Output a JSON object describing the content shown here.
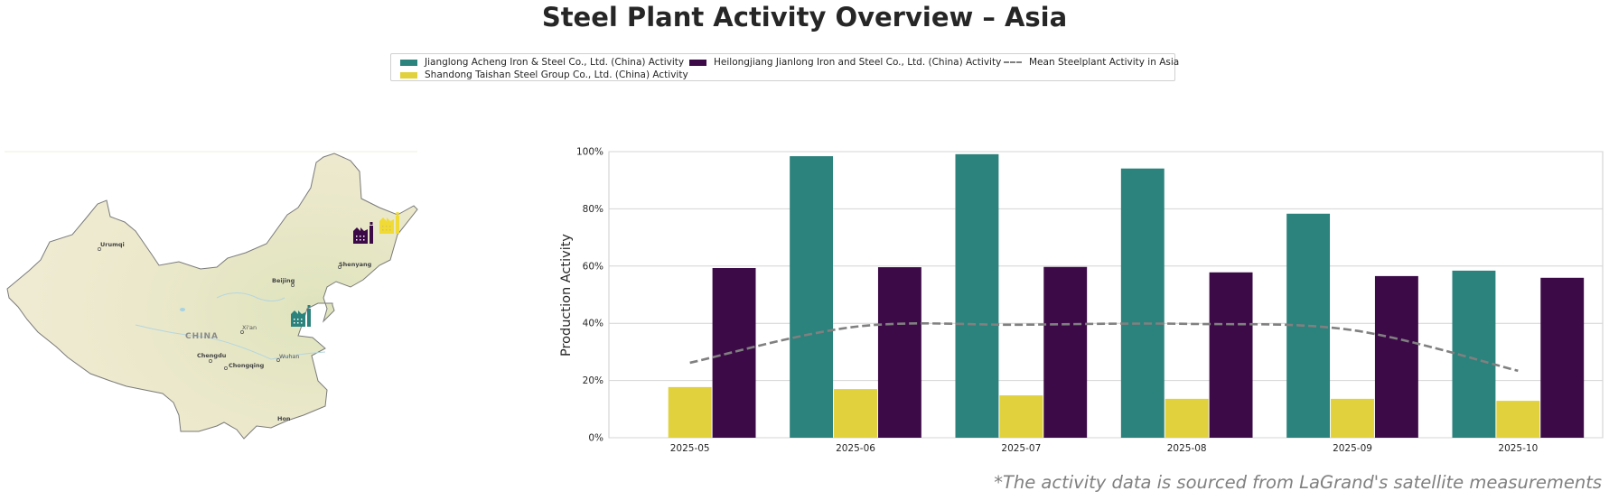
{
  "title": "Steel Plant Activity Overview – Asia",
  "footer_note": "*The activity data is sourced from LaGrand's satellite measurements",
  "legend": [
    {
      "label": "Jianglong Acheng Iron & Steel Co., Ltd. (China) Activity",
      "color": "#2c827c",
      "kind": "bar"
    },
    {
      "label": "Shandong Taishan Steel Group Co., Ltd. (China) Activity",
      "color": "#e0d13d",
      "kind": "bar"
    },
    {
      "label": "Heilongjiang Jianlong Iron and Steel Co., Ltd. (China) Activity",
      "color": "#3b0a47",
      "kind": "bar"
    },
    {
      "label": "Mean Steelplant Activity in Asia",
      "color": "#808080",
      "kind": "dashed-line"
    }
  ],
  "map": {
    "country_label": "CHINA",
    "cities": [
      "Urumqi",
      "Beijing",
      "Shenyang",
      "Xi'an",
      "Chengdu",
      "Chongqing",
      "Wuhan",
      "Hon"
    ],
    "plant_markers": [
      {
        "name": "Heilongjiang Jianlong Iron and Steel Co., Ltd.",
        "color": "#3b0a47"
      },
      {
        "name": "Shandong Taishan Steel Group Co., Ltd.",
        "color": "#e0d13d"
      },
      {
        "name": "Jianglong Acheng Iron & Steel Co., Ltd.",
        "color": "#2c827c"
      }
    ]
  },
  "chart_data": {
    "type": "bar",
    "title": "",
    "xlabel": "",
    "ylabel": "Production Activity",
    "ylim": [
      0,
      100
    ],
    "yticks": [
      "0%",
      "20%",
      "40%",
      "60%",
      "80%",
      "100%"
    ],
    "grid": true,
    "categories": [
      "2025-05",
      "2025-06",
      "2025-07",
      "2025-08",
      "2025-09",
      "2025-10"
    ],
    "series": [
      {
        "name": "Jianglong Acheng Iron & Steel Co., Ltd. (China) Activity",
        "color": "#2c827c",
        "type": "bar",
        "values": [
          null,
          98.4,
          99.1,
          94.1,
          78.3,
          58.4
        ]
      },
      {
        "name": "Shandong Taishan Steel Group Co., Ltd. (China) Activity",
        "color": "#e0d13d",
        "type": "bar",
        "values": [
          17.7,
          17.0,
          14.8,
          13.6,
          13.6,
          12.9
        ]
      },
      {
        "name": "Heilongjiang Jianlong Iron and Steel Co., Ltd. (China) Activity",
        "color": "#3b0a47",
        "type": "bar",
        "values": [
          59.3,
          59.6,
          59.7,
          57.8,
          56.5,
          55.9
        ]
      },
      {
        "name": "Mean Steelplant Activity in Asia",
        "color": "#808080",
        "type": "line",
        "style": "dashed",
        "values": [
          26.2,
          38.8,
          39.5,
          39.8,
          37.6,
          23.4
        ]
      }
    ],
    "legend_position": "top-center"
  }
}
